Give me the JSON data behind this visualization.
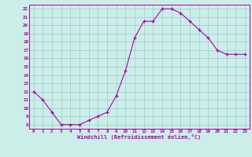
{
  "x": [
    0,
    1,
    2,
    3,
    4,
    5,
    6,
    7,
    8,
    9,
    10,
    11,
    12,
    13,
    14,
    15,
    16,
    17,
    18,
    19,
    20,
    21,
    22,
    23
  ],
  "y": [
    12,
    11,
    9.5,
    8,
    8,
    8,
    8.5,
    9,
    9.5,
    11.5,
    14.5,
    18.5,
    20.5,
    20.5,
    22,
    22,
    21.5,
    20.5,
    19.5,
    18.5,
    17,
    16.5,
    16.5,
    16.5
  ],
  "line_color": "#aa00aa",
  "marker": "+",
  "marker_color": "#aa00aa",
  "bg_color": "#cceee8",
  "grid_color": "#99cccc",
  "xlabel": "Windchill (Refroidissement éolien,°C)",
  "xlabel_color": "#aa00aa",
  "tick_color": "#aa00aa",
  "ylim": [
    7.5,
    22.5
  ],
  "xlim": [
    -0.5,
    23.5
  ],
  "yticks": [
    8,
    9,
    10,
    11,
    12,
    13,
    14,
    15,
    16,
    17,
    18,
    19,
    20,
    21,
    22
  ],
  "xticks": [
    0,
    1,
    2,
    3,
    4,
    5,
    6,
    7,
    8,
    9,
    10,
    11,
    12,
    13,
    14,
    15,
    16,
    17,
    18,
    19,
    20,
    21,
    22,
    23
  ],
  "xtick_labels": [
    "0",
    "1",
    "2",
    "3",
    "4",
    "5",
    "6",
    "7",
    "8",
    "9",
    "10",
    "11",
    "12",
    "13",
    "14",
    "15",
    "16",
    "17",
    "18",
    "19",
    "20",
    "21",
    "22",
    "23"
  ],
  "ytick_labels": [
    "8",
    "9",
    "10",
    "11",
    "12",
    "13",
    "14",
    "15",
    "16",
    "17",
    "18",
    "19",
    "20",
    "21",
    "22"
  ]
}
